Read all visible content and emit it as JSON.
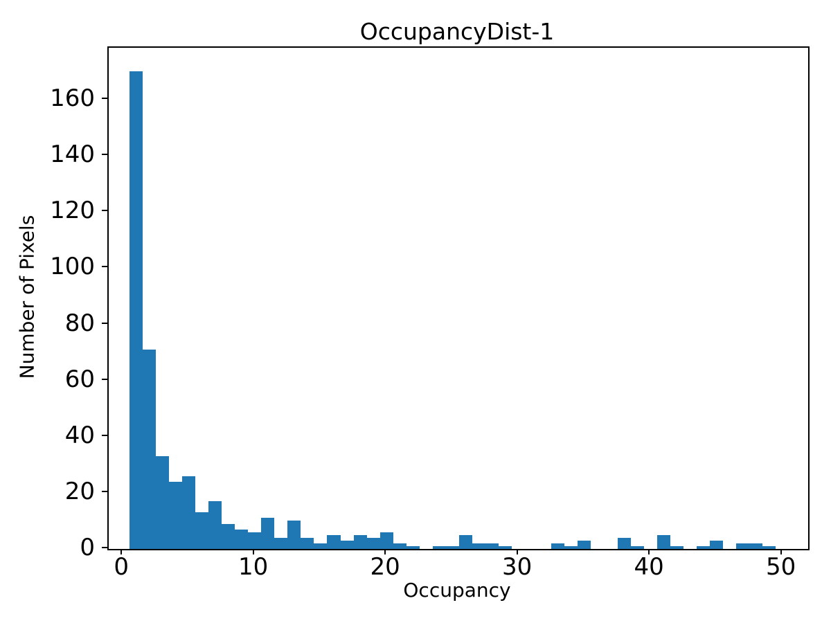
{
  "chart_data": {
    "type": "bar",
    "subtype": "histogram",
    "title": "OccupancyDist-1",
    "xlabel": "Occupancy",
    "ylabel": "Number of Pixels",
    "bar_color": "#1f77b4",
    "axis_color": "#000000",
    "background_color": "#ffffff",
    "grid": "off",
    "legend": "none",
    "xlim": [
      -1.06,
      51.96
    ],
    "ylim": [
      0,
      178.5
    ],
    "xticks": [
      0,
      10,
      20,
      30,
      40,
      50
    ],
    "yticks": [
      0,
      20,
      40,
      60,
      80,
      100,
      120,
      140,
      160
    ],
    "bin_width": 1,
    "bin_start": 0.5,
    "bin_centers": [
      1,
      2,
      3,
      4,
      5,
      6,
      7,
      8,
      9,
      10,
      11,
      12,
      13,
      14,
      15,
      16,
      17,
      18,
      19,
      20,
      21,
      22,
      23,
      24,
      25,
      26,
      27,
      28,
      29,
      30,
      31,
      32,
      33,
      34,
      35,
      36,
      37,
      38,
      39,
      40,
      41,
      42,
      43,
      44,
      45,
      46,
      47,
      48,
      49
    ],
    "counts": [
      170,
      71,
      33,
      24,
      26,
      13,
      17,
      9,
      7,
      6,
      11,
      4,
      10,
      4,
      2,
      5,
      3,
      5,
      4,
      6,
      2,
      1,
      0,
      1,
      1,
      5,
      2,
      2,
      1,
      0,
      0,
      0,
      2,
      1,
      3,
      0,
      0,
      4,
      1,
      0,
      5,
      1,
      0,
      1,
      3,
      0,
      2,
      2,
      1
    ]
  }
}
